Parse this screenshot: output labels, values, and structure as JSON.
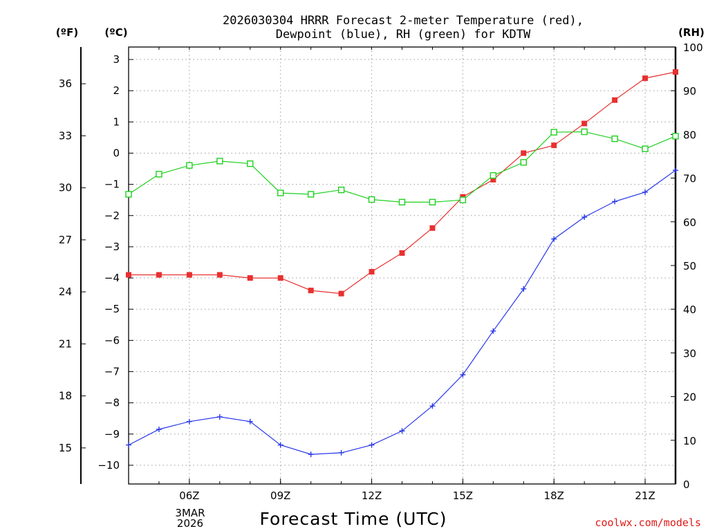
{
  "chart_data": {
    "type": "line",
    "title_lines": [
      "2026030304 HRRR Forecast 2-meter Temperature (red),",
      "Dewpoint (blue), RH (green) for KDTW"
    ],
    "left_axis_f": {
      "unit_label": "(ºF)",
      "ticks": [
        15,
        18,
        21,
        24,
        27,
        30,
        33,
        36
      ],
      "tick_labels": [
        "15",
        "18",
        "21",
        "24",
        "27",
        "30",
        "33",
        "36"
      ]
    },
    "left_axis_c": {
      "unit_label": "(ºC)",
      "ylim": [
        -10.6,
        3.4
      ],
      "ticks": [
        -10,
        -9,
        -8,
        -7,
        -6,
        -5,
        -4,
        -3,
        -2,
        -1,
        0,
        1,
        2,
        3
      ],
      "tick_labels": [
        "−10",
        "−9",
        "−8",
        "−7",
        "−6",
        "−5",
        "−4",
        "−3",
        "−2",
        "−1",
        "0",
        "1",
        "2",
        "3"
      ]
    },
    "right_axis_rh": {
      "unit_label": "(RH)",
      "ylim": [
        0,
        100
      ],
      "ticks": [
        0,
        10,
        20,
        30,
        40,
        50,
        60,
        70,
        80,
        90,
        100
      ],
      "tick_labels": [
        "0",
        "10",
        "20",
        "30",
        "40",
        "50",
        "60",
        "70",
        "80",
        "90",
        "100"
      ]
    },
    "x_axis": {
      "hours": [
        4,
        5,
        6,
        7,
        8,
        9,
        10,
        11,
        12,
        13,
        14,
        15,
        16,
        17,
        18,
        19,
        20,
        21,
        22
      ],
      "xlim": [
        4,
        22
      ],
      "ticks": [
        6,
        9,
        12,
        15,
        18,
        21
      ],
      "tick_labels": [
        "06Z",
        "09Z",
        "12Z",
        "15Z",
        "18Z",
        "21Z"
      ],
      "date_label_line1": "3MAR",
      "date_label_line2": "2026",
      "xlabel": "Forecast Time (UTC)"
    },
    "series": [
      {
        "name": "Temperature",
        "color": "#e83030",
        "axis": "celsius",
        "marker": "filled-square",
        "values": [
          -3.9,
          -3.9,
          -3.9,
          -3.9,
          -4.0,
          -4.0,
          -4.4,
          -4.5,
          -3.8,
          -3.2,
          -2.4,
          -1.4,
          -0.85,
          0.0,
          0.25,
          0.95,
          1.7,
          2.4,
          2.6
        ]
      },
      {
        "name": "Dewpoint",
        "color": "#2838e8",
        "axis": "celsius",
        "marker": "plus",
        "values": [
          -9.35,
          -8.85,
          -8.6,
          -8.45,
          -8.6,
          -9.35,
          -9.65,
          -9.6,
          -9.35,
          -8.9,
          -8.1,
          -7.1,
          -5.7,
          -4.35,
          -2.75,
          -2.05,
          -1.55,
          -1.25,
          -0.55
        ]
      },
      {
        "name": "RH",
        "color": "#20d020",
        "axis": "rh",
        "marker": "open-square",
        "values": [
          66.3,
          70.9,
          72.9,
          73.9,
          73.3,
          66.6,
          66.3,
          67.3,
          65.1,
          64.5,
          64.5,
          65.0,
          70.6,
          73.6,
          80.5,
          80.6,
          79.0,
          76.7,
          79.6
        ]
      }
    ],
    "grid": true,
    "credit": "coolwx.com/models"
  }
}
